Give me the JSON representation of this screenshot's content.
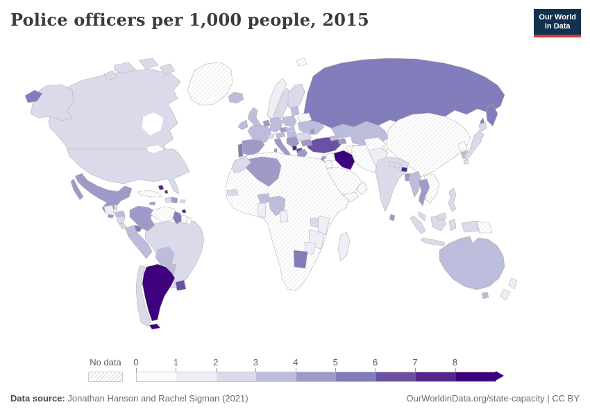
{
  "header": {
    "title": "Police officers per 1,000 people, 2015",
    "logo": {
      "line1": "Our World",
      "line2": "in Data",
      "bg": "#12304f",
      "accent": "#d93a34"
    }
  },
  "footer": {
    "source_label": "Data source:",
    "source_text": " Jonathan Hanson and Rachel Sigman (2021)",
    "credit": "OurWorldinData.org/state-capacity | CC BY"
  },
  "chart_data": {
    "type": "choropleth",
    "title": "Police officers per 1,000 people, 2015",
    "year": "2015",
    "unit": "police officers per 1,000 people",
    "projection": "world map",
    "styles": {
      "border": "#b3b3b3",
      "hatch_line": "#d6d6d6",
      "ocean": "#ffffff"
    },
    "legend": {
      "no_data_label": "No data",
      "ticks": [
        "0",
        "1",
        "2",
        "3",
        "4",
        "5",
        "6",
        "7",
        "8"
      ],
      "bins": [
        "0-1",
        "1-2",
        "2-3",
        "3-4",
        "4-5",
        "5-6",
        "6-7",
        "7-8",
        "8+"
      ],
      "colors": [
        "#fcfbfd",
        "#efedf5",
        "#dadaeb",
        "#bcbddc",
        "#9e9ac8",
        "#807dba",
        "#6a51a3",
        "#54278f",
        "#3f007d"
      ],
      "open_ended_arrow": true
    },
    "countries": [
      {
        "name": "Canada",
        "region": "canada",
        "bin": "2-3"
      },
      {
        "name": "United States",
        "region": "united-states",
        "bin": "2-3"
      },
      {
        "name": "Greenland",
        "region": "greenland",
        "bin": "No data"
      },
      {
        "name": "Mexico",
        "region": "mexico",
        "bin": "4-5"
      },
      {
        "name": "Guatemala",
        "region": "guatemala",
        "bin": "1-2"
      },
      {
        "name": "Belize",
        "region": "belize",
        "bin": "2-3"
      },
      {
        "name": "Honduras",
        "region": "honduras",
        "bin": "3-4"
      },
      {
        "name": "El Salvador",
        "region": "el-salvador",
        "bin": "4-5"
      },
      {
        "name": "Nicaragua",
        "region": "nicaragua",
        "bin": "2-3"
      },
      {
        "name": "Costa Rica",
        "region": "costa-rica",
        "bin": "2-3"
      },
      {
        "name": "Panama",
        "region": "panama",
        "bin": "5-6"
      },
      {
        "name": "Cuba",
        "region": "cuba",
        "bin": "No data"
      },
      {
        "name": "Jamaica",
        "region": "jamaica",
        "bin": "4-5"
      },
      {
        "name": "Haiti",
        "region": "haiti",
        "bin": "2-3"
      },
      {
        "name": "Dominican Republic",
        "region": "dominican-republic",
        "bin": "4-5"
      },
      {
        "name": "Puerto Rico",
        "region": "puerto-rico",
        "bin": "2-3"
      },
      {
        "name": "Bahamas",
        "region": "bahamas",
        "bin": "7-8"
      },
      {
        "name": "Trinidad and Tobago",
        "region": "trinidad-and-tobago",
        "bin": "7-8"
      },
      {
        "name": "Colombia",
        "region": "colombia",
        "bin": "4-5"
      },
      {
        "name": "Venezuela",
        "region": "venezuela",
        "bin": "No data"
      },
      {
        "name": "Guyana",
        "region": "guyana",
        "bin": "5-6"
      },
      {
        "name": "Suriname",
        "region": "suriname",
        "bin": "No data"
      },
      {
        "name": "French Guiana",
        "region": "french-guiana",
        "bin": "No data"
      },
      {
        "name": "Ecuador",
        "region": "ecuador",
        "bin": "3-4"
      },
      {
        "name": "Peru",
        "region": "peru",
        "bin": "3-4"
      },
      {
        "name": "Brazil",
        "region": "brazil",
        "bin": "2-3"
      },
      {
        "name": "Bolivia",
        "region": "bolivia",
        "bin": "3-4"
      },
      {
        "name": "Paraguay",
        "region": "paraguay",
        "bin": "3-4"
      },
      {
        "name": "Uruguay",
        "region": "uruguay",
        "bin": "6-7"
      },
      {
        "name": "Argentina",
        "region": "argentina",
        "bin": "8+"
      },
      {
        "name": "Chile",
        "region": "chile",
        "bin": "2-3"
      },
      {
        "name": "Iceland",
        "region": "iceland",
        "bin": "3-4"
      },
      {
        "name": "Norway",
        "region": "norway",
        "bin": "1-2"
      },
      {
        "name": "Sweden",
        "region": "sweden",
        "bin": "2-3"
      },
      {
        "name": "Finland",
        "region": "finland",
        "bin": "2-3"
      },
      {
        "name": "Denmark",
        "region": "denmark",
        "bin": "3-4"
      },
      {
        "name": "United Kingdom",
        "region": "united-kingdom",
        "bin": "3-4"
      },
      {
        "name": "Ireland",
        "region": "ireland",
        "bin": "3-4"
      },
      {
        "name": "Portugal",
        "region": "portugal",
        "bin": "5-6"
      },
      {
        "name": "Spain",
        "region": "spain",
        "bin": "4-5"
      },
      {
        "name": "France",
        "region": "france",
        "bin": "3-4"
      },
      {
        "name": "Netherlands",
        "region": "netherlands",
        "bin": "4-5"
      },
      {
        "name": "Germany",
        "region": "germany",
        "bin": "3-4"
      },
      {
        "name": "Switzerland",
        "region": "switzerland",
        "bin": "2-3"
      },
      {
        "name": "Czechia",
        "region": "czechia",
        "bin": "4-5"
      },
      {
        "name": "Austria",
        "region": "austria",
        "bin": "3-4"
      },
      {
        "name": "Italy",
        "region": "italy",
        "bin": "4-5"
      },
      {
        "name": "Poland",
        "region": "poland",
        "bin": "3-4"
      },
      {
        "name": "Lithuania",
        "region": "lithuania",
        "bin": "3-4"
      },
      {
        "name": "Belarus",
        "region": "belarus",
        "bin": "No data"
      },
      {
        "name": "Ukraine",
        "region": "ukraine",
        "bin": "3-4"
      },
      {
        "name": "Moldova",
        "region": "moldova",
        "bin": "4-5"
      },
      {
        "name": "Romania",
        "region": "romania",
        "bin": "2-3"
      },
      {
        "name": "Hungary",
        "region": "hungary",
        "bin": "3-4"
      },
      {
        "name": "Slovakia",
        "region": "slovakia",
        "bin": "3-4"
      },
      {
        "name": "Serbia",
        "region": "serbia",
        "bin": "4-5"
      },
      {
        "name": "Montenegro",
        "region": "montenegro",
        "bin": "7-8"
      },
      {
        "name": "Albania",
        "region": "albania",
        "bin": "6-7"
      },
      {
        "name": "Bulgaria",
        "region": "bulgaria",
        "bin": "4-5"
      },
      {
        "name": "Greece",
        "region": "greece",
        "bin": "4-5"
      },
      {
        "name": "Turkey",
        "region": "turkey",
        "bin": "6-7"
      },
      {
        "name": "Cyprus",
        "region": "cyprus",
        "bin": "4-5"
      },
      {
        "name": "Russia",
        "region": "russia",
        "bin": "5-6"
      },
      {
        "name": "Kazakhstan",
        "region": "kazakhstan",
        "bin": "3-4"
      },
      {
        "name": "Uzbekistan",
        "region": "central-asia",
        "bin": "No data"
      },
      {
        "name": "Turkmenistan",
        "region": "central-asia",
        "bin": "No data"
      },
      {
        "name": "Kyrgyzstan",
        "region": "central-asia",
        "bin": "No data"
      },
      {
        "name": "Tajikistan",
        "region": "central-asia",
        "bin": "No data"
      },
      {
        "name": "Georgia",
        "region": "georgia",
        "bin": "3-4"
      },
      {
        "name": "Azerbaijan",
        "region": "azerbaijan",
        "bin": "4-5"
      },
      {
        "name": "Syria",
        "region": "syria",
        "bin": "No data"
      },
      {
        "name": "Iraq",
        "region": "iraq",
        "bin": "8+"
      },
      {
        "name": "Iran",
        "region": "iran",
        "bin": "No data"
      },
      {
        "name": "Saudi Arabia",
        "region": "saudi-arabia",
        "bin": "No data"
      },
      {
        "name": "Yemen",
        "region": "yemen",
        "bin": "No data"
      },
      {
        "name": "Oman",
        "region": "oman",
        "bin": "No data"
      },
      {
        "name": "Jordan",
        "region": "jordan",
        "bin": "No data"
      },
      {
        "name": "Israel",
        "region": "israel",
        "bin": "5-6"
      },
      {
        "name": "Afghanistan",
        "region": "afghanistan",
        "bin": "No data"
      },
      {
        "name": "Pakistan",
        "region": "pakistan",
        "bin": "1-2"
      },
      {
        "name": "India",
        "region": "india",
        "bin": "2-3"
      },
      {
        "name": "Nepal",
        "region": "nepal",
        "bin": "2-3"
      },
      {
        "name": "Bhutan",
        "region": "bhutan",
        "bin": "7-8"
      },
      {
        "name": "Bangladesh",
        "region": "bangladesh",
        "bin": "4-5"
      },
      {
        "name": "Sri Lanka",
        "region": "sri-lanka",
        "bin": "4-5"
      },
      {
        "name": "China",
        "region": "china-mongolia",
        "bin": "No data"
      },
      {
        "name": "Mongolia",
        "region": "china-mongolia",
        "bin": "No data"
      },
      {
        "name": "North Korea",
        "region": "north-korea",
        "bin": "No data"
      },
      {
        "name": "South Korea",
        "region": "south-korea",
        "bin": "3-4"
      },
      {
        "name": "Japan",
        "region": "japan",
        "bin": "2-3"
      },
      {
        "name": "Myanmar",
        "region": "myanmar",
        "bin": "3-4"
      },
      {
        "name": "Thailand",
        "region": "thailand",
        "bin": "4-5"
      },
      {
        "name": "Vietnam",
        "region": "indochina",
        "bin": "No data"
      },
      {
        "name": "Laos",
        "region": "indochina",
        "bin": "No data"
      },
      {
        "name": "Cambodia",
        "region": "indochina",
        "bin": "No data"
      },
      {
        "name": "Malaysia",
        "region": "malaysia",
        "bin": "2-3"
      },
      {
        "name": "Indonesia",
        "region": "indonesia",
        "bin": "2-3"
      },
      {
        "name": "Philippines",
        "region": "philippines",
        "bin": "2-3"
      },
      {
        "name": "Papua New Guinea",
        "region": "papua-new-guinea",
        "bin": "No data"
      },
      {
        "name": "Australia",
        "region": "australia",
        "bin": "3-4"
      },
      {
        "name": "New Zealand",
        "region": "new-zealand",
        "bin": "1-2"
      },
      {
        "name": "Morocco",
        "region": "morocco",
        "bin": "2-3"
      },
      {
        "name": "Algeria",
        "region": "algeria",
        "bin": "4-5"
      },
      {
        "name": "Senegal",
        "region": "senegal",
        "bin": "2-3"
      },
      {
        "name": "Burkina Faso",
        "region": "burkina-faso",
        "bin": "3-4"
      },
      {
        "name": "Ghana",
        "region": "ghana",
        "bin": "1-2"
      },
      {
        "name": "Nigeria",
        "region": "nigeria",
        "bin": "3-4"
      },
      {
        "name": "Cameroon",
        "region": "cameroon",
        "bin": "1-2"
      },
      {
        "name": "Uganda",
        "region": "uganda",
        "bin": "2-3"
      },
      {
        "name": "Kenya",
        "region": "kenya",
        "bin": "1-2"
      },
      {
        "name": "Tanzania",
        "region": "tanzania",
        "bin": "1-2"
      },
      {
        "name": "Zimbabwe",
        "region": "zimbabwe",
        "bin": "1-2"
      },
      {
        "name": "Botswana",
        "region": "botswana",
        "bin": "5-6"
      },
      {
        "name": "Madagascar",
        "region": "madagascar",
        "bin": "1-2"
      },
      {
        "name": "Svalbard",
        "region": "svalbard",
        "bin": "No data"
      },
      {
        "name": "Libya",
        "region": "africa-nodata",
        "bin": "No data"
      },
      {
        "name": "Egypt",
        "region": "africa-nodata",
        "bin": "No data"
      },
      {
        "name": "Sudan",
        "region": "africa-nodata",
        "bin": "No data"
      },
      {
        "name": "Ethiopia",
        "region": "africa-nodata",
        "bin": "No data"
      },
      {
        "name": "Somalia",
        "region": "africa-nodata",
        "bin": "No data"
      },
      {
        "name": "Democratic Republic of Congo",
        "region": "africa-nodata",
        "bin": "No data"
      },
      {
        "name": "Angola",
        "region": "africa-nodata",
        "bin": "No data"
      },
      {
        "name": "Namibia",
        "region": "africa-nodata",
        "bin": "No data"
      },
      {
        "name": "South Africa",
        "region": "africa-nodata",
        "bin": "No data"
      },
      {
        "name": "Mozambique",
        "region": "africa-nodata",
        "bin": "No data"
      },
      {
        "name": "Zambia",
        "region": "africa-nodata",
        "bin": "No data"
      },
      {
        "name": "Mali",
        "region": "africa-nodata",
        "bin": "No data"
      },
      {
        "name": "Niger",
        "region": "africa-nodata",
        "bin": "No data"
      },
      {
        "name": "Chad",
        "region": "africa-nodata",
        "bin": "No data"
      },
      {
        "name": "Mauritania",
        "region": "africa-nodata",
        "bin": "No data"
      }
    ]
  }
}
